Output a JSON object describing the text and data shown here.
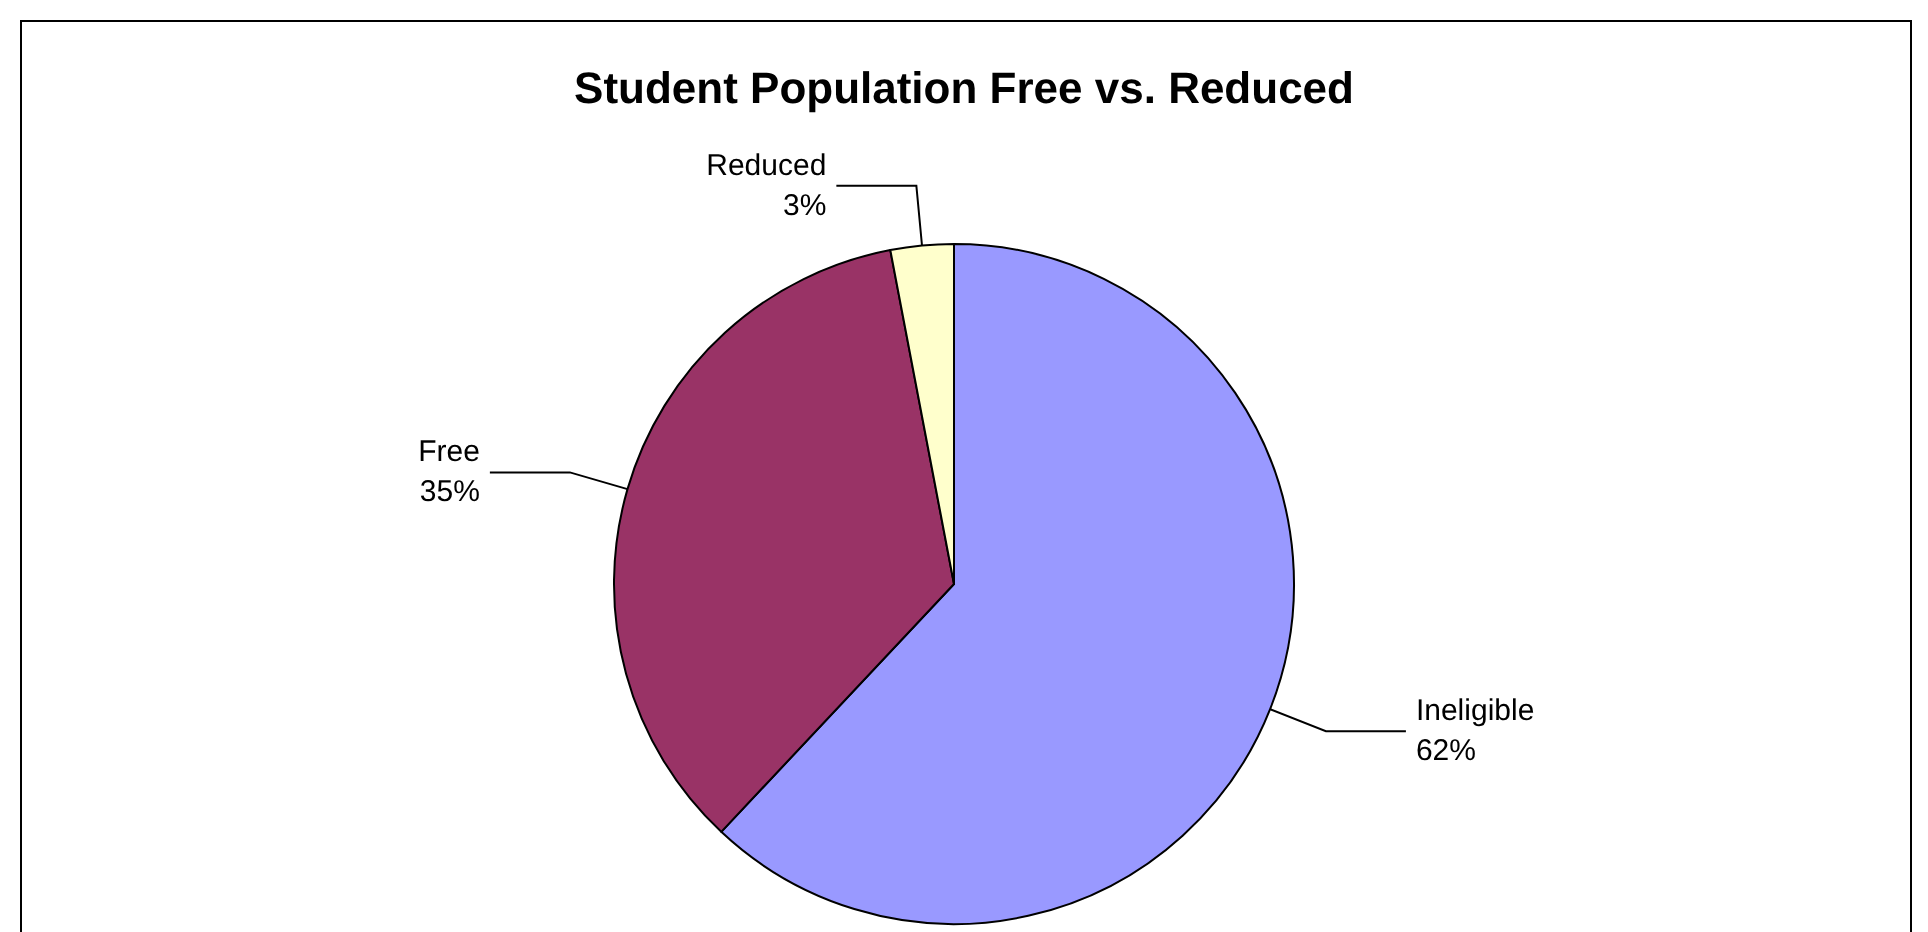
{
  "chart_data": {
    "type": "pie",
    "title": "Student Population Free vs. Reduced",
    "categories": [
      "Ineligible",
      "Free",
      "Reduced"
    ],
    "values": [
      62,
      35,
      3
    ],
    "value_labels": [
      "62%",
      "35%",
      "3%"
    ],
    "colors": [
      "#9999ff",
      "#993366",
      "#ffffcc"
    ],
    "legend": false
  }
}
